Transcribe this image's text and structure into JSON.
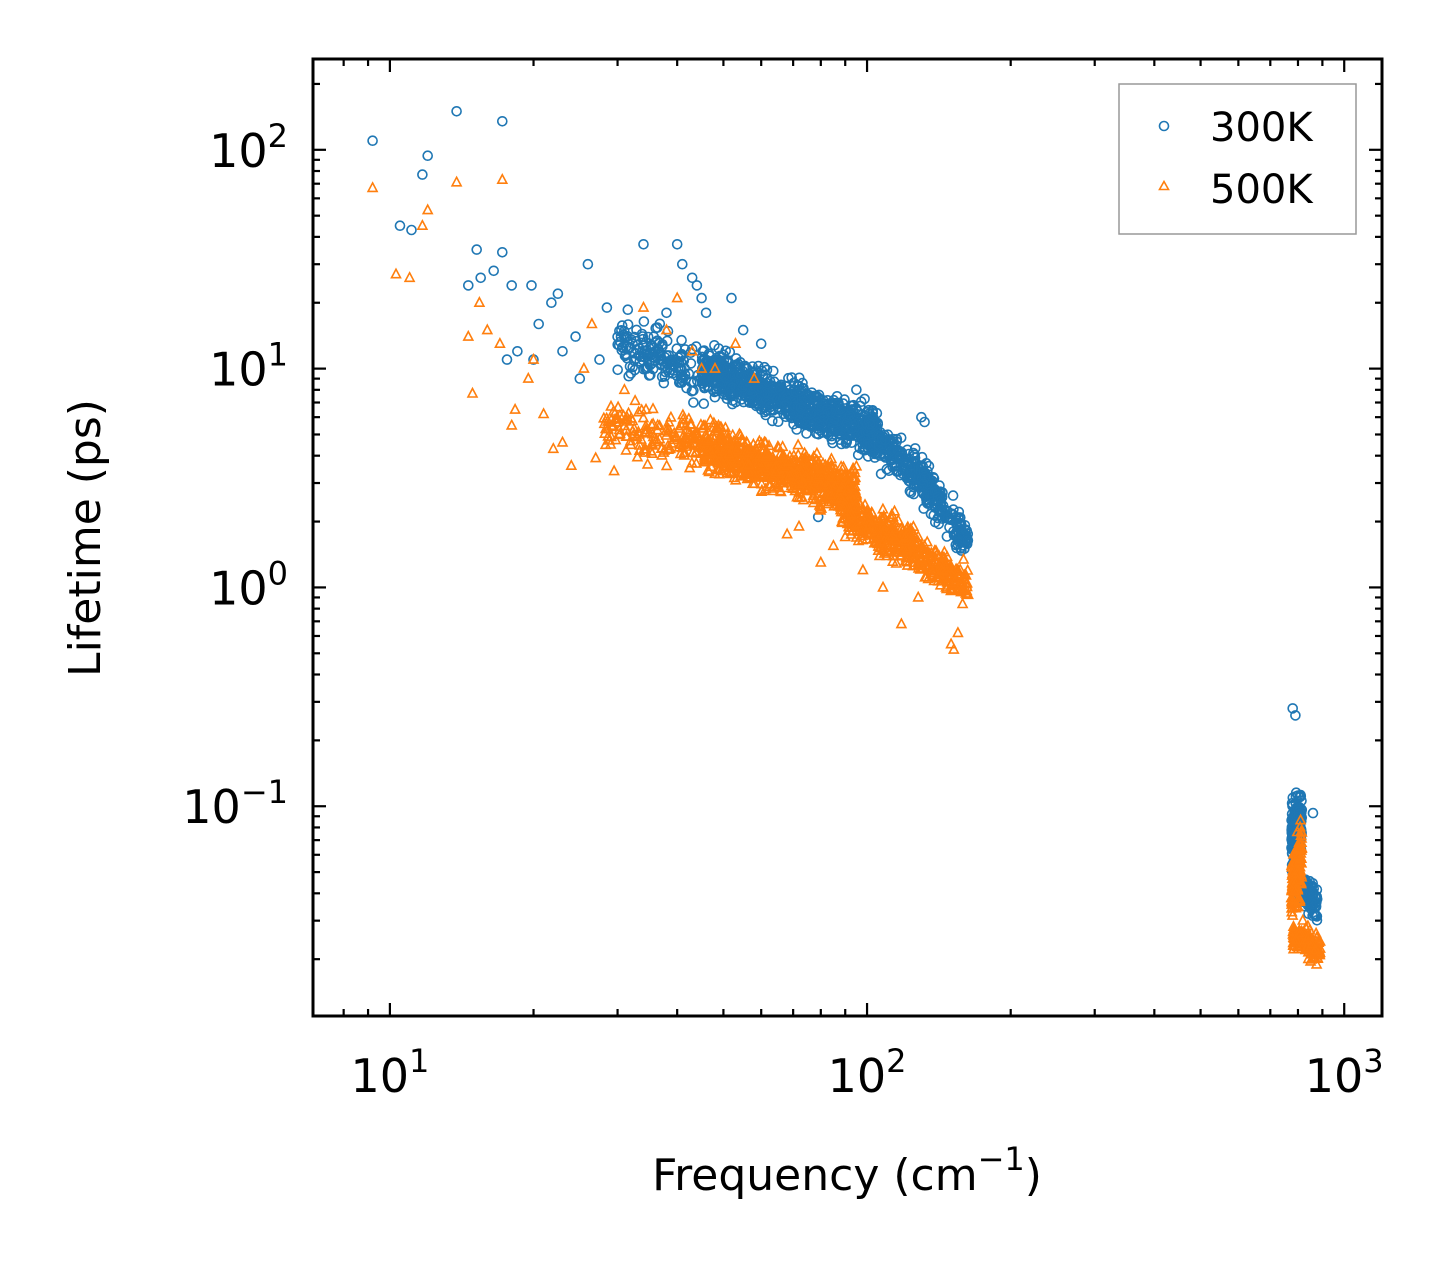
{
  "chart_data": {
    "type": "scatter",
    "xscale": "log",
    "yscale": "log",
    "xlim": [
      6.9,
      1200
    ],
    "ylim": [
      0.011,
      260
    ],
    "xlabel": {
      "text": "Frequency (cm",
      "sup": "−1",
      "suffix": ")"
    },
    "ylabel": "Lifetime (ps)",
    "x_ticks": [
      {
        "value": 10,
        "base": "10",
        "exp": "1"
      },
      {
        "value": 100,
        "base": "10",
        "exp": "2"
      },
      {
        "value": 1000,
        "base": "10",
        "exp": "3"
      }
    ],
    "y_ticks": [
      {
        "value": 0.1,
        "base": "10",
        "exp": "−1"
      },
      {
        "value": 1,
        "base": "10",
        "exp": "0"
      },
      {
        "value": 10,
        "base": "10",
        "exp": "1"
      },
      {
        "value": 100,
        "base": "10",
        "exp": "2"
      }
    ],
    "legend": {
      "position": "top-right"
    },
    "series": [
      {
        "name": "300K",
        "marker": "circle",
        "color": "#1f77b4",
        "clusters": [
          {
            "fmin": 30,
            "fmax": 45,
            "tau_at_fmin": 13,
            "tau_at_fmax": 9.5,
            "spread": 1.7,
            "count": 160
          },
          {
            "fmin": 45,
            "fmax": 105,
            "tau_at_fmin": 10,
            "tau_at_fmax": 5.0,
            "spread": 1.6,
            "count": 900
          },
          {
            "fmin": 100,
            "fmax": 135,
            "tau_at_fmin": 5.0,
            "tau_at_fmax": 3.0,
            "spread": 1.5,
            "count": 220
          },
          {
            "fmin": 130,
            "fmax": 163,
            "tau_at_fmin": 3.0,
            "tau_at_fmax": 1.6,
            "spread": 1.5,
            "count": 170
          },
          {
            "fmin": 775,
            "fmax": 815,
            "tau_at_fmin": 0.07,
            "tau_at_fmax": 0.09,
            "spread": 1.9,
            "count": 170
          },
          {
            "fmin": 790,
            "fmax": 880,
            "tau_at_fmin": 0.045,
            "tau_at_fmax": 0.035,
            "spread": 1.4,
            "count": 120
          }
        ],
        "points": [
          {
            "x": 9.2,
            "y": 110
          },
          {
            "x": 10.5,
            "y": 45
          },
          {
            "x": 11.1,
            "y": 43
          },
          {
            "x": 11.7,
            "y": 77
          },
          {
            "x": 12.0,
            "y": 94
          },
          {
            "x": 13.8,
            "y": 150
          },
          {
            "x": 14.6,
            "y": 24
          },
          {
            "x": 15.2,
            "y": 35
          },
          {
            "x": 15.5,
            "y": 26
          },
          {
            "x": 16.5,
            "y": 28
          },
          {
            "x": 17.2,
            "y": 135
          },
          {
            "x": 17.2,
            "y": 34
          },
          {
            "x": 18.0,
            "y": 24
          },
          {
            "x": 17.6,
            "y": 11
          },
          {
            "x": 18.5,
            "y": 12
          },
          {
            "x": 19.8,
            "y": 24
          },
          {
            "x": 20.5,
            "y": 16
          },
          {
            "x": 21.8,
            "y": 20
          },
          {
            "x": 22.5,
            "y": 22
          },
          {
            "x": 23.0,
            "y": 12
          },
          {
            "x": 24.5,
            "y": 14
          },
          {
            "x": 26.0,
            "y": 30
          },
          {
            "x": 27.5,
            "y": 11
          },
          {
            "x": 28.5,
            "y": 19
          },
          {
            "x": 30.5,
            "y": 14
          },
          {
            "x": 34.0,
            "y": 37
          },
          {
            "x": 38.0,
            "y": 18
          },
          {
            "x": 40.0,
            "y": 37
          },
          {
            "x": 41.0,
            "y": 30
          },
          {
            "x": 43.0,
            "y": 26
          },
          {
            "x": 44.0,
            "y": 24
          },
          {
            "x": 45.0,
            "y": 21
          },
          {
            "x": 46.0,
            "y": 18
          },
          {
            "x": 52.0,
            "y": 21
          },
          {
            "x": 55.0,
            "y": 15
          },
          {
            "x": 60.0,
            "y": 13
          },
          {
            "x": 95.0,
            "y": 8
          },
          {
            "x": 130.0,
            "y": 6
          },
          {
            "x": 132.0,
            "y": 5.7
          },
          {
            "x": 79.0,
            "y": 2.1
          },
          {
            "x": 780.0,
            "y": 0.28
          },
          {
            "x": 790.0,
            "y": 0.26
          },
          {
            "x": 860.0,
            "y": 0.093
          },
          {
            "x": 20.0,
            "y": 11
          },
          {
            "x": 25.0,
            "y": 9
          },
          {
            "x": 32.0,
            "y": 9.5
          },
          {
            "x": 36.0,
            "y": 12
          }
        ]
      },
      {
        "name": "500K",
        "marker": "triangle",
        "color": "#ff7f0e",
        "clusters": [
          {
            "fmin": 28,
            "fmax": 45,
            "tau_at_fmin": 5.5,
            "tau_at_fmax": 4.5,
            "spread": 1.7,
            "count": 160
          },
          {
            "fmin": 45,
            "fmax": 95,
            "tau_at_fmin": 4.5,
            "tau_at_fmax": 2.7,
            "spread": 1.6,
            "count": 800
          },
          {
            "fmin": 88,
            "fmax": 125,
            "tau_at_fmin": 2.3,
            "tau_at_fmax": 1.5,
            "spread": 1.55,
            "count": 280
          },
          {
            "fmin": 120,
            "fmax": 163,
            "tau_at_fmin": 1.6,
            "tau_at_fmax": 1.0,
            "spread": 1.5,
            "count": 200
          },
          {
            "fmin": 775,
            "fmax": 815,
            "tau_at_fmin": 0.04,
            "tau_at_fmax": 0.06,
            "spread": 2.0,
            "count": 170
          },
          {
            "fmin": 780,
            "fmax": 890,
            "tau_at_fmin": 0.026,
            "tau_at_fmax": 0.022,
            "spread": 1.35,
            "count": 130
          }
        ],
        "points": [
          {
            "x": 9.2,
            "y": 67
          },
          {
            "x": 10.3,
            "y": 27
          },
          {
            "x": 11.0,
            "y": 26
          },
          {
            "x": 11.7,
            "y": 45
          },
          {
            "x": 12.0,
            "y": 53
          },
          {
            "x": 13.8,
            "y": 71
          },
          {
            "x": 14.6,
            "y": 14
          },
          {
            "x": 14.9,
            "y": 7.7
          },
          {
            "x": 15.4,
            "y": 20
          },
          {
            "x": 17.2,
            "y": 73
          },
          {
            "x": 16.0,
            "y": 15
          },
          {
            "x": 17.0,
            "y": 13
          },
          {
            "x": 18.0,
            "y": 5.5
          },
          {
            "x": 18.3,
            "y": 6.5
          },
          {
            "x": 19.5,
            "y": 9
          },
          {
            "x": 20.0,
            "y": 11
          },
          {
            "x": 21.0,
            "y": 6.2
          },
          {
            "x": 22.0,
            "y": 4.3
          },
          {
            "x": 23.0,
            "y": 4.6
          },
          {
            "x": 24.0,
            "y": 3.6
          },
          {
            "x": 25.5,
            "y": 10
          },
          {
            "x": 26.5,
            "y": 16
          },
          {
            "x": 27.0,
            "y": 3.9
          },
          {
            "x": 29.5,
            "y": 3.4
          },
          {
            "x": 31.0,
            "y": 8
          },
          {
            "x": 34.0,
            "y": 19
          },
          {
            "x": 38.0,
            "y": 15
          },
          {
            "x": 40.0,
            "y": 21
          },
          {
            "x": 43.0,
            "y": 12
          },
          {
            "x": 45.0,
            "y": 10
          },
          {
            "x": 48.0,
            "y": 10
          },
          {
            "x": 53.0,
            "y": 13
          },
          {
            "x": 58.0,
            "y": 9
          },
          {
            "x": 80.0,
            "y": 1.3
          },
          {
            "x": 85.0,
            "y": 1.55
          },
          {
            "x": 90.0,
            "y": 1.7
          },
          {
            "x": 98.0,
            "y": 1.2
          },
          {
            "x": 108.0,
            "y": 1.0
          },
          {
            "x": 118.0,
            "y": 0.68
          },
          {
            "x": 128.0,
            "y": 0.9
          },
          {
            "x": 150.0,
            "y": 0.55
          },
          {
            "x": 152.0,
            "y": 0.52
          },
          {
            "x": 155.0,
            "y": 0.62
          },
          {
            "x": 68.0,
            "y": 1.75
          },
          {
            "x": 72.0,
            "y": 1.9
          }
        ]
      }
    ]
  }
}
